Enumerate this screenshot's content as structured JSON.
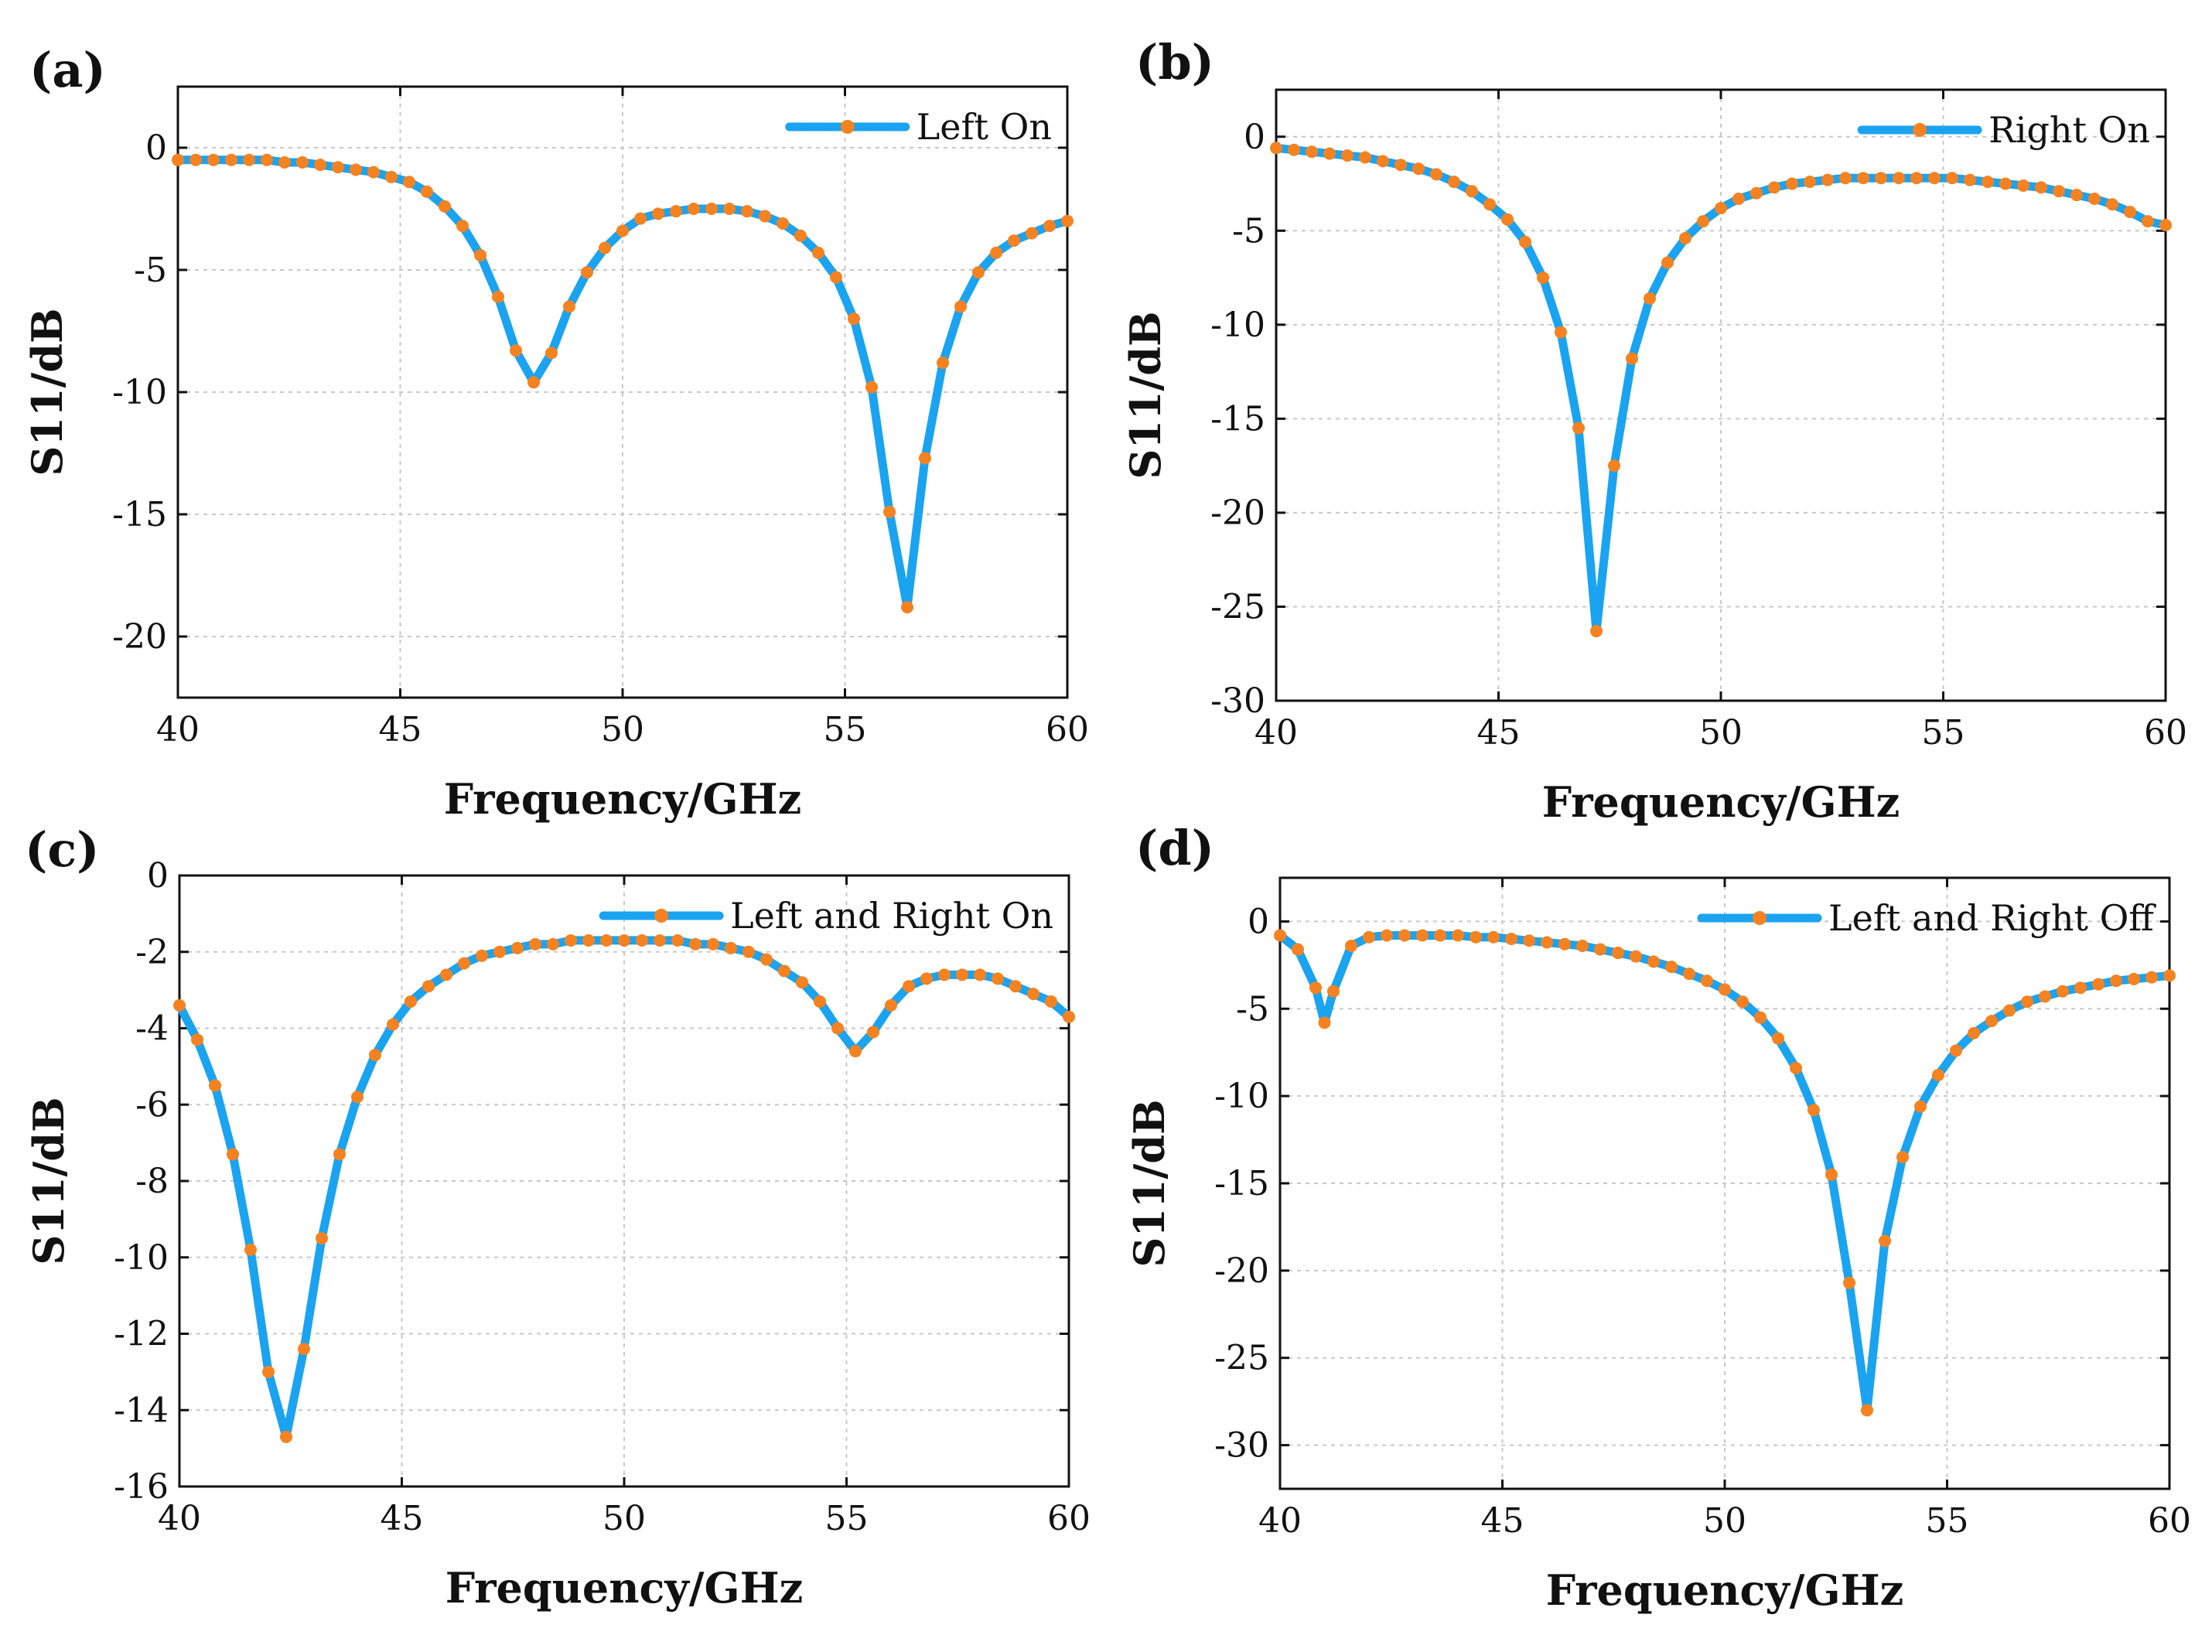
{
  "style": {
    "line_color": "#1aa3f0",
    "marker_color": "#f58220"
  },
  "chart_data": [
    {
      "panel": "(a)",
      "type": "line",
      "xlabel": "Frequency/GHz",
      "ylabel": "S11/dB",
      "xlim": [
        40,
        60
      ],
      "ylim": [
        -22.5,
        2.5
      ],
      "xticks": [
        40,
        45,
        50,
        55,
        60
      ],
      "yticks": [
        0,
        -5,
        -10,
        -15,
        -20
      ],
      "grid": true,
      "legend_position": "top-right",
      "series": [
        {
          "name": "Left On",
          "x": [
            40.0,
            40.4,
            40.8,
            41.2,
            41.6,
            42.0,
            42.4,
            42.8,
            43.2,
            43.6,
            44.0,
            44.4,
            44.8,
            45.2,
            45.6,
            46.0,
            46.4,
            46.8,
            47.2,
            47.6,
            48.0,
            48.4,
            48.8,
            49.2,
            49.6,
            50.0,
            50.4,
            50.8,
            51.2,
            51.6,
            52.0,
            52.4,
            52.8,
            53.2,
            53.6,
            54.0,
            54.4,
            54.8,
            55.2,
            55.6,
            56.0,
            56.4,
            56.8,
            57.2,
            57.6,
            58.0,
            58.4,
            58.8,
            59.2,
            59.6,
            60.0
          ],
          "y": [
            -0.5,
            -0.5,
            -0.5,
            -0.5,
            -0.5,
            -0.5,
            -0.6,
            -0.6,
            -0.7,
            -0.8,
            -0.9,
            -1.0,
            -1.2,
            -1.4,
            -1.8,
            -2.4,
            -3.2,
            -4.4,
            -6.1,
            -8.3,
            -9.6,
            -8.4,
            -6.5,
            -5.1,
            -4.1,
            -3.4,
            -2.9,
            -2.7,
            -2.6,
            -2.5,
            -2.5,
            -2.5,
            -2.6,
            -2.8,
            -3.1,
            -3.6,
            -4.3,
            -5.3,
            -7.0,
            -9.8,
            -14.9,
            -18.8,
            -12.7,
            -8.8,
            -6.5,
            -5.1,
            -4.3,
            -3.8,
            -3.5,
            -3.2,
            -3.0
          ]
        }
      ]
    },
    {
      "panel": "(b)",
      "type": "line",
      "xlabel": "Frequency/GHz",
      "ylabel": "S11/dB",
      "xlim": [
        40,
        60
      ],
      "ylim": [
        -30,
        2.5
      ],
      "xticks": [
        40,
        45,
        50,
        55,
        60
      ],
      "yticks": [
        0,
        -5,
        -10,
        -15,
        -20,
        -25,
        -30
      ],
      "grid": true,
      "legend_position": "top-right",
      "series": [
        {
          "name": "Right On",
          "x": [
            40.0,
            40.4,
            40.8,
            41.2,
            41.6,
            42.0,
            42.4,
            42.8,
            43.2,
            43.6,
            44.0,
            44.4,
            44.8,
            45.2,
            45.6,
            46.0,
            46.4,
            46.8,
            47.2,
            47.6,
            48.0,
            48.4,
            48.8,
            49.2,
            49.6,
            50.0,
            50.4,
            50.8,
            51.2,
            51.6,
            52.0,
            52.4,
            52.8,
            53.2,
            53.6,
            54.0,
            54.4,
            54.8,
            55.2,
            55.6,
            56.0,
            56.4,
            56.8,
            57.2,
            57.6,
            58.0,
            58.4,
            58.8,
            59.2,
            59.6,
            60.0
          ],
          "y": [
            -0.6,
            -0.7,
            -0.8,
            -0.9,
            -1.0,
            -1.1,
            -1.3,
            -1.5,
            -1.7,
            -2.0,
            -2.4,
            -2.9,
            -3.6,
            -4.4,
            -5.6,
            -7.5,
            -10.4,
            -15.5,
            -26.3,
            -17.5,
            -11.8,
            -8.6,
            -6.7,
            -5.4,
            -4.5,
            -3.8,
            -3.3,
            -3.0,
            -2.7,
            -2.5,
            -2.4,
            -2.3,
            -2.2,
            -2.2,
            -2.2,
            -2.2,
            -2.2,
            -2.2,
            -2.2,
            -2.3,
            -2.4,
            -2.5,
            -2.6,
            -2.7,
            -2.9,
            -3.1,
            -3.3,
            -3.6,
            -4.0,
            -4.5,
            -4.7
          ]
        }
      ]
    },
    {
      "panel": "(c)",
      "type": "line",
      "xlabel": "Frequency/GHz",
      "ylabel": "S11/dB",
      "xlim": [
        40,
        60
      ],
      "ylim": [
        -16,
        0
      ],
      "xticks": [
        40,
        45,
        50,
        55,
        60
      ],
      "yticks": [
        0,
        -2,
        -4,
        -6,
        -8,
        -10,
        -12,
        -14,
        -16
      ],
      "grid": true,
      "legend_position": "top-right",
      "series": [
        {
          "name": "Left and Right On",
          "x": [
            40.0,
            40.4,
            40.8,
            41.2,
            41.6,
            42.0,
            42.4,
            42.8,
            43.2,
            43.6,
            44.0,
            44.4,
            44.8,
            45.2,
            45.6,
            46.0,
            46.4,
            46.8,
            47.2,
            47.6,
            48.0,
            48.4,
            48.8,
            49.2,
            49.6,
            50.0,
            50.4,
            50.8,
            51.2,
            51.6,
            52.0,
            52.4,
            52.8,
            53.2,
            53.6,
            54.0,
            54.4,
            54.8,
            55.2,
            55.6,
            56.0,
            56.4,
            56.8,
            57.2,
            57.6,
            58.0,
            58.4,
            58.8,
            59.2,
            59.6,
            60.0
          ],
          "y": [
            -3.4,
            -4.3,
            -5.5,
            -7.3,
            -9.8,
            -13.0,
            -14.7,
            -12.4,
            -9.5,
            -7.3,
            -5.8,
            -4.7,
            -3.9,
            -3.3,
            -2.9,
            -2.6,
            -2.3,
            -2.1,
            -2.0,
            -1.9,
            -1.8,
            -1.8,
            -1.7,
            -1.7,
            -1.7,
            -1.7,
            -1.7,
            -1.7,
            -1.7,
            -1.8,
            -1.8,
            -1.9,
            -2.0,
            -2.2,
            -2.5,
            -2.8,
            -3.3,
            -4.0,
            -4.6,
            -4.1,
            -3.4,
            -2.9,
            -2.7,
            -2.6,
            -2.6,
            -2.6,
            -2.7,
            -2.9,
            -3.1,
            -3.3,
            -3.7
          ]
        }
      ]
    },
    {
      "panel": "(d)",
      "type": "line",
      "xlabel": "Frequency/GHz",
      "ylabel": "S11/dB",
      "xlim": [
        40,
        60
      ],
      "ylim": [
        -32.5,
        2.5
      ],
      "xticks": [
        40,
        45,
        50,
        55,
        60
      ],
      "yticks": [
        0,
        -5,
        -10,
        -15,
        -20,
        -25,
        -30
      ],
      "grid": true,
      "legend_position": "top-right",
      "series": [
        {
          "name": "Left and Right Off",
          "x": [
            40.0,
            40.4,
            40.8,
            41.0,
            41.2,
            41.6,
            42.0,
            42.4,
            42.8,
            43.2,
            43.6,
            44.0,
            44.4,
            44.8,
            45.2,
            45.6,
            46.0,
            46.4,
            46.8,
            47.2,
            47.6,
            48.0,
            48.4,
            48.8,
            49.2,
            49.6,
            50.0,
            50.4,
            50.8,
            51.2,
            51.6,
            52.0,
            52.4,
            52.8,
            53.2,
            53.6,
            54.0,
            54.4,
            54.8,
            55.2,
            55.6,
            56.0,
            56.4,
            56.8,
            57.2,
            57.6,
            58.0,
            58.4,
            58.8,
            59.2,
            59.6,
            60.0
          ],
          "y": [
            -0.8,
            -1.6,
            -3.8,
            -5.8,
            -4.0,
            -1.4,
            -0.9,
            -0.8,
            -0.8,
            -0.8,
            -0.8,
            -0.8,
            -0.9,
            -0.9,
            -1.0,
            -1.1,
            -1.2,
            -1.3,
            -1.4,
            -1.6,
            -1.8,
            -2.0,
            -2.3,
            -2.6,
            -3.0,
            -3.4,
            -3.9,
            -4.6,
            -5.5,
            -6.7,
            -8.4,
            -10.8,
            -14.5,
            -20.7,
            -28.0,
            -18.3,
            -13.5,
            -10.6,
            -8.8,
            -7.4,
            -6.4,
            -5.7,
            -5.1,
            -4.6,
            -4.3,
            -4.0,
            -3.8,
            -3.6,
            -3.4,
            -3.3,
            -3.2,
            -3.1
          ]
        }
      ]
    }
  ]
}
